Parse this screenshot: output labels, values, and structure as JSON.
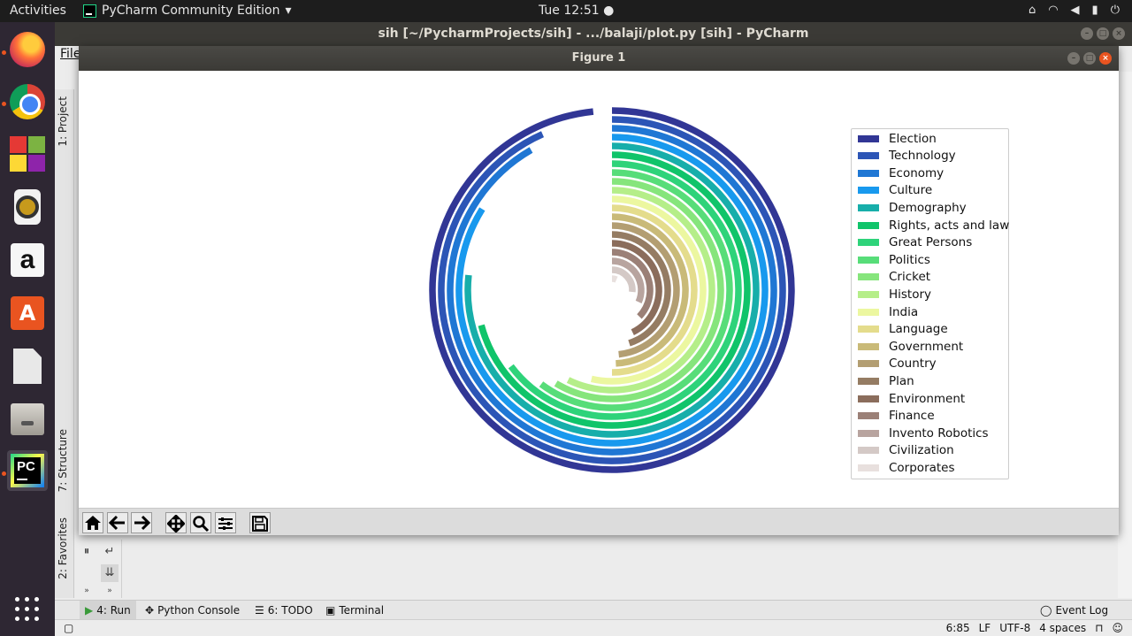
{
  "topbar": {
    "activities": "Activities",
    "app_name": "PyCharm Community Edition",
    "clock": "Tue 12:51",
    "tray_icons": [
      "network-icon",
      "wifi-icon",
      "volume-icon",
      "battery-icon",
      "power-icon"
    ]
  },
  "dock": {
    "items": [
      "firefox",
      "chromium",
      "software-cubes",
      "rhythmbox",
      "amazon",
      "ubuntu-software",
      "libreoffice",
      "files",
      "pycharm"
    ]
  },
  "pycharm": {
    "title": "sih [~/PycharmProjects/sih] - .../balaji/plot.py [sih] - PyCharm",
    "menu_file": "File",
    "side_tabs": {
      "project": "1: Project",
      "structure": "7: Structure",
      "favorites": "2: Favorites"
    },
    "bottom_tabs": {
      "run": "4: Run",
      "python_console": "Python Console",
      "todo": "6: TODO",
      "terminal": "Terminal",
      "event_log": "Event Log"
    },
    "status": {
      "position": "6:85",
      "line_sep": "LF",
      "encoding": "UTF-8",
      "indent": "4 spaces"
    }
  },
  "figure": {
    "title": "Figure 1",
    "toolbar": [
      "home-icon",
      "back-icon",
      "forward-icon",
      "pan-icon",
      "zoom-icon",
      "configure-icon",
      "save-icon"
    ]
  },
  "chart_data": {
    "type": "radial-bar",
    "categories": [
      "Election",
      "Technology",
      "Economy",
      "Culture",
      "Demography",
      "Rights, acts and law",
      "Great Persons",
      "Politics",
      "Cricket",
      "History",
      "India",
      "Language",
      "Government",
      "Country",
      "Plan",
      "Environment",
      "Finance",
      "Invento Robotics",
      "Civilization",
      "Corporates"
    ],
    "sweep_degrees": [
      354,
      336,
      330,
      302,
      276,
      255,
      233,
      217,
      211,
      206,
      193,
      180,
      177,
      174,
      162,
      154,
      134,
      114,
      95,
      23
    ],
    "colors": [
      "#313695",
      "#2c55b6",
      "#1f77d4",
      "#1899ee",
      "#17aeaa",
      "#10c46a",
      "#2ed37a",
      "#57dd79",
      "#86e57c",
      "#b5ee89",
      "#ecf7a0",
      "#e4dc8c",
      "#c9ba78",
      "#b39e72",
      "#957c63",
      "#8b6d5c",
      "#9b8077",
      "#b8a49f",
      "#d4c9c6",
      "#e8e0de"
    ],
    "legend_position": "right"
  }
}
